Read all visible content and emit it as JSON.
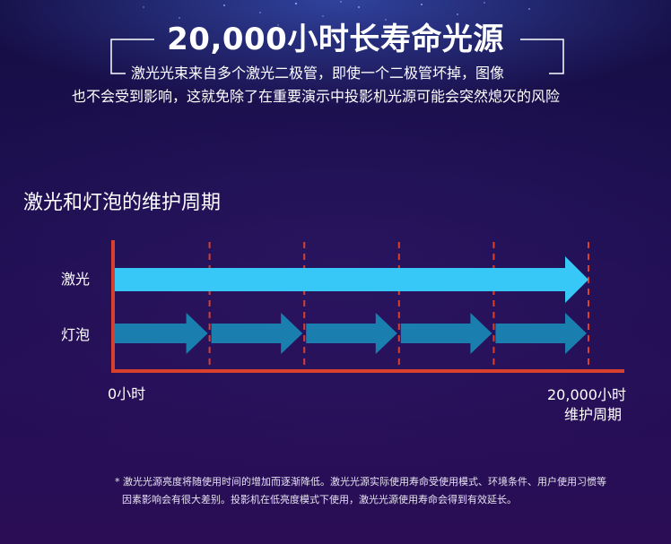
{
  "header": {
    "title": "20,000小时长寿命光源",
    "subtitle_line1": "激光光束来自多个激光二极管，即使一个二极管坏掉，图像",
    "subtitle_line2": "也不会受到影响，这就免除了在重要演示中投影机光源可能会突然熄灭的风险"
  },
  "section": {
    "title": "激光和灯泡的维护周期"
  },
  "diagram": {
    "row_laser": "激光",
    "row_bulb": "灯泡",
    "axis_start": "0小时",
    "axis_end_line1": "20,000小时",
    "axis_end_line2": "维护周期",
    "bulb_segments": 5,
    "colors": {
      "laser_arrow": "#38c8f8",
      "bulb_arrow": "#1a7fae",
      "axis": "#d8402e",
      "divider": "#d8402e"
    }
  },
  "footnote": {
    "line1": "* 激光光源亮度将随使用时间的增加而逐渐降低。激光光源实际使用寿命受使用模式、环境条件、用户使用习惯等",
    "line2": "因素影响会有很大差别。投影机在低亮度模式下使用，激光光源使用寿命会得到有效延长。"
  }
}
